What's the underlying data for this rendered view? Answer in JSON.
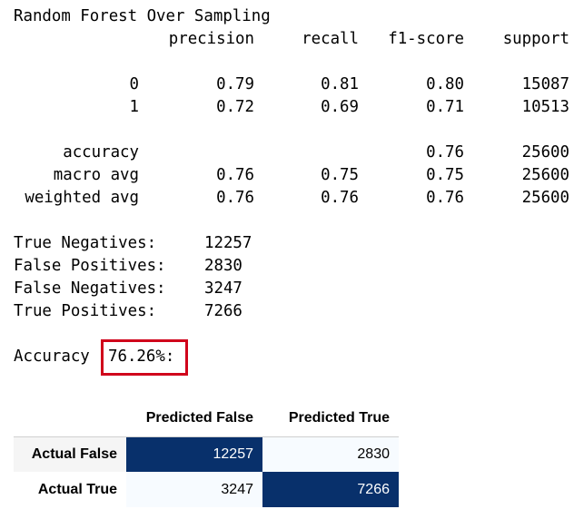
{
  "report": {
    "title": "Random Forest Over Sampling",
    "header": {
      "precision": "precision",
      "recall": "recall",
      "f1": "f1-score",
      "support": "support"
    },
    "rows": [
      {
        "label": "0",
        "precision": "0.79",
        "recall": "0.81",
        "f1": "0.80",
        "support": "15087"
      },
      {
        "label": "1",
        "precision": "0.72",
        "recall": "0.69",
        "f1": "0.71",
        "support": "10513"
      }
    ],
    "accuracy": {
      "label": "accuracy",
      "f1": "0.76",
      "support": "25600"
    },
    "macro": {
      "label": "macro avg",
      "precision": "0.76",
      "recall": "0.75",
      "f1": "0.75",
      "support": "25600"
    },
    "weighted": {
      "label": "weighted avg",
      "precision": "0.76",
      "recall": "0.76",
      "f1": "0.76",
      "support": "25600"
    }
  },
  "counts": [
    {
      "label": "True Negatives:",
      "value": "12257"
    },
    {
      "label": "False Positives:",
      "value": "2830"
    },
    {
      "label": "False Negatives:",
      "value": "3247"
    },
    {
      "label": "True Positives:",
      "value": "7266"
    }
  ],
  "accuracy_line": {
    "label": "Accuracy",
    "value": "76.26%:"
  },
  "colors": {
    "highlight_border": "#d0021b",
    "cell_dark": "#08306b",
    "cell_light": "#f7fbff"
  },
  "confusion": {
    "columns": [
      "Predicted False",
      "Predicted True"
    ],
    "rows": [
      {
        "label": "Actual False",
        "values": [
          "12257",
          "2830"
        ],
        "shades": [
          1.0,
          0.0
        ]
      },
      {
        "label": "Actual True",
        "values": [
          "3247",
          "7266"
        ],
        "shades": [
          0.0,
          1.0
        ]
      }
    ]
  }
}
